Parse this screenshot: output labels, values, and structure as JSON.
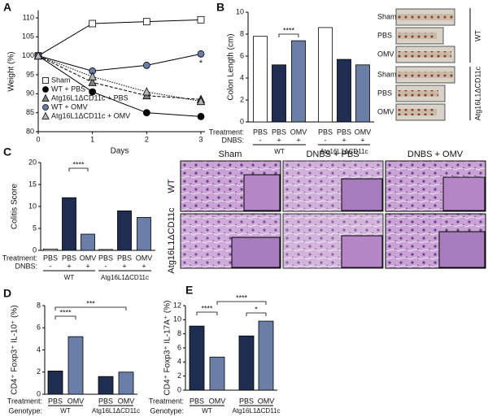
{
  "chart_data": [
    {
      "panel": "A",
      "type": "line",
      "ylabel": "Weight (%)",
      "xlabel": "Days",
      "x": [
        0,
        1,
        2,
        3
      ],
      "xlim": [
        0,
        3
      ],
      "xticks": [
        0,
        1,
        2,
        3
      ],
      "ylim": [
        80,
        112
      ],
      "yticks": [
        80,
        85,
        90,
        95,
        100,
        105,
        110
      ],
      "series": [
        {
          "name": "Sham",
          "color": "#ffffff",
          "marker": "square",
          "line_style": "solid",
          "values": [
            100,
            108.5,
            109,
            109.5
          ]
        },
        {
          "name": "WT + PBS",
          "color": "#000000",
          "marker": "circle",
          "line_style": "solid",
          "values": [
            100,
            90.5,
            85,
            84
          ]
        },
        {
          "name": "Atg16L1ΔCD11c + PBS",
          "color": "#7f7f7f",
          "marker": "triangle",
          "line_style": "dashed",
          "values": [
            100,
            93,
            89.5,
            88.5
          ]
        },
        {
          "name": "WT + OMV",
          "color": "#6b7ea8",
          "marker": "circle",
          "line_style": "solid",
          "values": [
            100,
            96,
            97.5,
            100.5
          ]
        },
        {
          "name": "Atg16L1ΔCD11c + OMV",
          "color": "#b5b5b5",
          "marker": "triangle",
          "line_style": "dotted",
          "values": [
            100,
            94.5,
            90.5,
            88
          ]
        }
      ],
      "annotations": [
        "*"
      ]
    },
    {
      "panel": "B",
      "type": "bar",
      "ylabel": "Colon Length (cm)",
      "ylim": [
        0,
        10
      ],
      "yticks": [
        0,
        2,
        4,
        6,
        8,
        10
      ],
      "treatment_label": "Treatment:",
      "categories": [
        "PBS",
        "PBS",
        "OMV",
        "PBS",
        "PBS",
        "OMV"
      ],
      "dnbs_label": "DNBS:",
      "dnbs": [
        "-",
        "+",
        "+",
        "-",
        "+",
        "+"
      ],
      "groups": [
        "WT",
        "Atg16L1ΔCD11c"
      ],
      "values": [
        7.8,
        5.2,
        7.4,
        8.6,
        5.7,
        5.2
      ],
      "colors": [
        "#ffffff",
        "#1f2d50",
        "#6b7ea8",
        "#ffffff",
        "#1f2d50",
        "#6b7ea8"
      ],
      "significance": [
        "****"
      ]
    },
    {
      "panel": "C",
      "type": "bar",
      "ylabel": "Colitis Score",
      "ylim": [
        0,
        20
      ],
      "yticks": [
        0,
        5,
        10,
        15,
        20
      ],
      "treatment_label": "Treatment:",
      "categories": [
        "PBS",
        "PBS",
        "OMV",
        "PBS",
        "PBS",
        "OMV"
      ],
      "dnbs_label": "DNBS:",
      "dnbs": [
        "-",
        "+",
        "+",
        "-",
        "+",
        "+"
      ],
      "groups": [
        "WT",
        "Atg16L1ΔCD11c"
      ],
      "values": [
        0.3,
        12,
        3.7,
        0.2,
        9,
        7.5
      ],
      "colors": [
        "#ffffff",
        "#1f2d50",
        "#6b7ea8",
        "#ffffff",
        "#1f2d50",
        "#6b7ea8"
      ],
      "significance": [
        "****"
      ]
    },
    {
      "panel": "D",
      "type": "bar",
      "ylabel": "CD4⁺ Foxp3⁺ IL-10⁺ (%)",
      "ylim": [
        0,
        8
      ],
      "yticks": [
        0,
        2,
        4,
        6,
        8
      ],
      "treatment_label": "Treatment:",
      "categories": [
        "PBS",
        "OMV",
        "PBS",
        "OMV"
      ],
      "genotype_label": "Genotype:",
      "groups": [
        "WT",
        "Atg16L1ΔCD11c"
      ],
      "values": [
        2.1,
        5.2,
        1.6,
        2.0
      ],
      "colors": [
        "#1f2d50",
        "#6b7ea8",
        "#1f2d50",
        "#6b7ea8"
      ],
      "significance": [
        "****",
        "***"
      ]
    },
    {
      "panel": "E",
      "type": "bar",
      "ylabel": "CD4⁺ Foxp3⁺ IL-17A⁺ (%)",
      "ylim": [
        0,
        12
      ],
      "yticks": [
        0,
        2,
        4,
        6,
        8,
        10,
        12
      ],
      "treatment_label": "Treatment:",
      "categories": [
        "PBS",
        "OMV",
        "PBS",
        "OMV"
      ],
      "genotype_label": "Genotype:",
      "groups": [
        "WT",
        "Atg16L1ΔCD11c"
      ],
      "values": [
        9.1,
        4.7,
        7.7,
        9.8
      ],
      "colors": [
        "#1f2d50",
        "#6b7ea8",
        "#1f2d50",
        "#6b7ea8"
      ],
      "significance": [
        "****",
        "****",
        "*"
      ]
    }
  ],
  "colon_photos": {
    "labels": [
      "Sham",
      "PBS",
      "OMV",
      "Sham",
      "PBS",
      "OMV"
    ],
    "groups": [
      "WT",
      "Atg16L1ΔCD11c"
    ]
  },
  "histology": {
    "columns": [
      "Sham",
      "DNBS + PBS",
      "DNBS + OMV"
    ],
    "rows": [
      "WT",
      "Atg16L1ΔCD11c"
    ]
  }
}
